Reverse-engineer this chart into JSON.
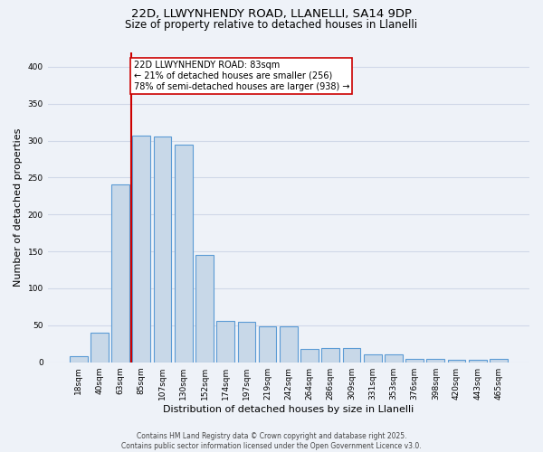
{
  "title1": "22D, LLWYNHENDY ROAD, LLANELLI, SA14 9DP",
  "title2": "Size of property relative to detached houses in Llanelli",
  "xlabel": "Distribution of detached houses by size in Llanelli",
  "ylabel": "Number of detached properties",
  "bar_labels": [
    "18sqm",
    "40sqm",
    "63sqm",
    "85sqm",
    "107sqm",
    "130sqm",
    "152sqm",
    "174sqm",
    "197sqm",
    "219sqm",
    "242sqm",
    "264sqm",
    "286sqm",
    "309sqm",
    "331sqm",
    "353sqm",
    "376sqm",
    "398sqm",
    "420sqm",
    "443sqm",
    "465sqm"
  ],
  "bar_values": [
    8,
    40,
    241,
    307,
    305,
    294,
    145,
    56,
    55,
    48,
    48,
    18,
    19,
    19,
    11,
    11,
    5,
    4,
    3,
    3,
    4
  ],
  "bar_color": "#c8d8e8",
  "bar_edgecolor": "#5b9bd5",
  "property_bin_index": 3,
  "redline_label_line1": "22D LLWYNHENDY ROAD: 83sqm",
  "redline_label_line2": "← 21% of detached houses are smaller (256)",
  "redline_label_line3": "78% of semi-detached houses are larger (938) →",
  "annotation_box_color": "#ffffff",
  "annotation_box_edgecolor": "#cc0000",
  "redline_color": "#cc0000",
  "grid_color": "#d0d8e8",
  "background_color": "#eef2f8",
  "footer_text": "Contains HM Land Registry data © Crown copyright and database right 2025.\nContains public sector information licensed under the Open Government Licence v3.0.",
  "ylim": [
    0,
    420
  ],
  "yticks": [
    0,
    50,
    100,
    150,
    200,
    250,
    300,
    350,
    400
  ],
  "title1_fontsize": 9.5,
  "title2_fontsize": 8.5,
  "xlabel_fontsize": 8,
  "ylabel_fontsize": 8,
  "tick_fontsize": 6.5,
  "annotation_fontsize": 7,
  "footer_fontsize": 5.5
}
